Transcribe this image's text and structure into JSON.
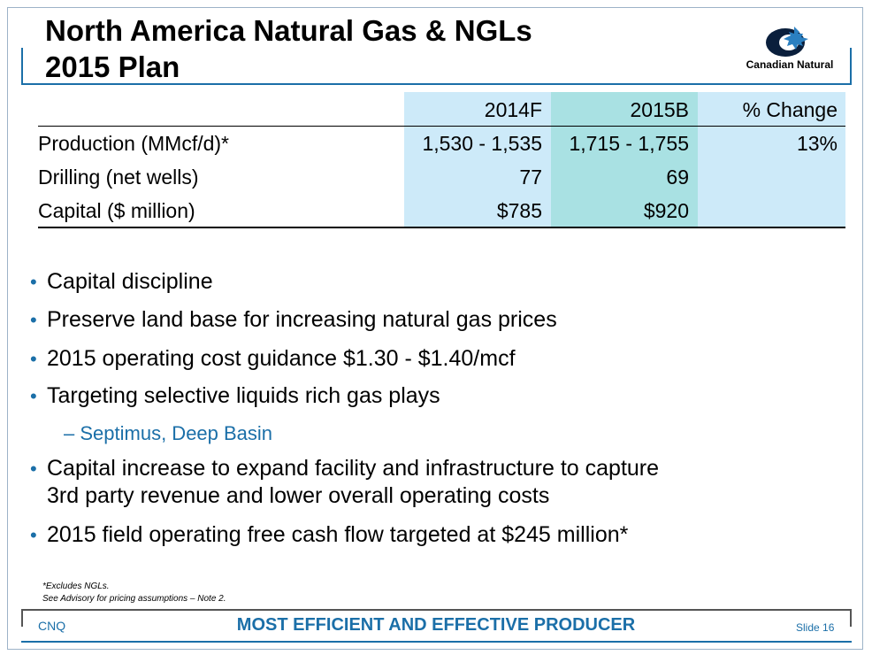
{
  "title": {
    "line1": "North America Natural Gas & NGLs",
    "line2": "2015 Plan"
  },
  "logo": {
    "text": "Canadian Natural",
    "icon": "canadian-natural-logo"
  },
  "table": {
    "headers": [
      "",
      "2014F",
      "2015B",
      "% Change"
    ],
    "rows": [
      {
        "label": "Production (MMcf/d)*",
        "c2014": "1,530 - 1,535",
        "c2015": "1,715 - 1,755",
        "change": "13%"
      },
      {
        "label": "Drilling (net wells)",
        "c2014": "77",
        "c2015": "69",
        "change": ""
      },
      {
        "label": "Capital ($ million)",
        "c2014": "$785",
        "c2015": "$920",
        "change": ""
      }
    ],
    "colors": {
      "col_2014": "#cdeaf9",
      "col_2015": "#a9e1e3",
      "col_change": "#cdeaf9"
    }
  },
  "bullets": [
    "Capital discipline",
    "Preserve land base for increasing natural gas prices",
    "2015 operating cost guidance $1.30 - $1.40/mcf",
    "Targeting selective liquids rich gas plays",
    "Capital increase to expand facility and infrastructure to capture",
    "3rd party revenue and lower overall operating costs",
    "2015 field operating free cash flow targeted at $245 million*"
  ],
  "sub_bullet": "Septimus, Deep Basin",
  "sub_dash": "–",
  "bullet_char": "•",
  "footnotes": [
    "*Excludes NGLs.",
    "See Advisory for pricing assumptions – Note 2."
  ],
  "footer": {
    "left": "CNQ",
    "center": "MOST EFFICIENT AND EFFECTIVE PRODUCER",
    "right": "Slide 16"
  },
  "accent_color": "#1b6fa8"
}
